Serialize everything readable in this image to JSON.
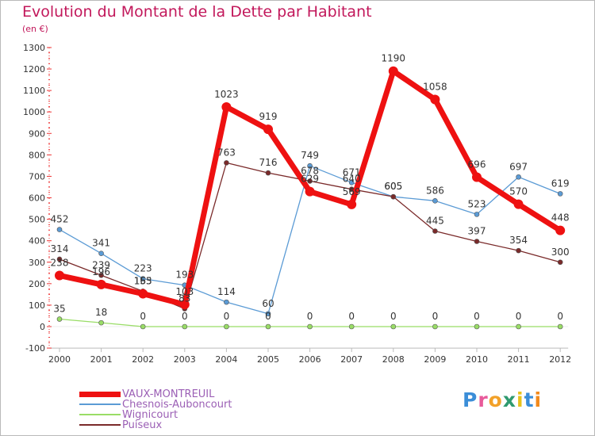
{
  "title": "Evolution du Montant de la Dette par Habitant",
  "subtitle": "(en €)",
  "logo": {
    "text": "Proxiti",
    "letters": [
      "P",
      "r",
      "o",
      "x",
      "i",
      "t",
      "i"
    ],
    "colors": [
      "#3b8ed8",
      "#e85a9a",
      "#f2a129",
      "#2f9a6f",
      "#e8c21c",
      "#3b8ed8",
      "#f28a1c"
    ]
  },
  "chart_data": {
    "type": "line",
    "x": [
      "2000",
      "2001",
      "2002",
      "2003",
      "2004",
      "2005",
      "2006",
      "2007",
      "2008",
      "2009",
      "2010",
      "2011",
      "2012"
    ],
    "ylim": [
      -100,
      1300
    ],
    "yticks": [
      -100,
      0,
      100,
      200,
      300,
      400,
      500,
      600,
      700,
      800,
      900,
      1000,
      1100,
      1200,
      1300
    ],
    "grid": false,
    "legend_position": "bottom-left",
    "series": [
      {
        "name": "VAUX-MONTREUIL",
        "color": "#ee1111",
        "width": 7,
        "marker_radius": 6,
        "values": [
          238,
          196,
          153,
          103,
          1023,
          919,
          629,
          569,
          1190,
          1058,
          696,
          570,
          448
        ],
        "labels": [
          "238",
          "196",
          "153",
          "103",
          "1023",
          "919",
          "629",
          "569",
          "1190",
          "1058",
          "696",
          "570",
          "448"
        ]
      },
      {
        "name": "Chesnois-Auboncourt",
        "color": "#5b9bd5",
        "width": 1.3,
        "marker_radius": 3,
        "values": [
          452,
          341,
          223,
          193,
          114,
          60,
          749,
          671,
          605,
          586,
          523,
          697,
          619
        ],
        "labels": [
          "452",
          "341",
          "223",
          "193",
          "114",
          "60",
          "749",
          "671",
          "605",
          "586",
          "523",
          "697",
          "619"
        ]
      },
      {
        "name": "Wignicourt",
        "color": "#99dd66",
        "width": 1.3,
        "marker_radius": 3,
        "values": [
          35,
          18,
          0,
          0,
          0,
          0,
          0,
          0,
          0,
          0,
          0,
          0,
          0
        ],
        "labels": [
          "35",
          "18",
          "0",
          "0",
          "0",
          "0",
          "0",
          "0",
          "0",
          "0",
          "0",
          "0",
          "0"
        ]
      },
      {
        "name": "Puiseux",
        "color": "#7a2a2a",
        "width": 1.3,
        "marker_radius": 3,
        "values": [
          314,
          239,
          165,
          83,
          763,
          716,
          678,
          640,
          605,
          445,
          397,
          354,
          300
        ],
        "labels": [
          "314",
          "239",
          "165",
          "83",
          "763",
          "716",
          "678",
          "640",
          "605",
          "445",
          "397",
          "354",
          "300"
        ]
      }
    ]
  }
}
